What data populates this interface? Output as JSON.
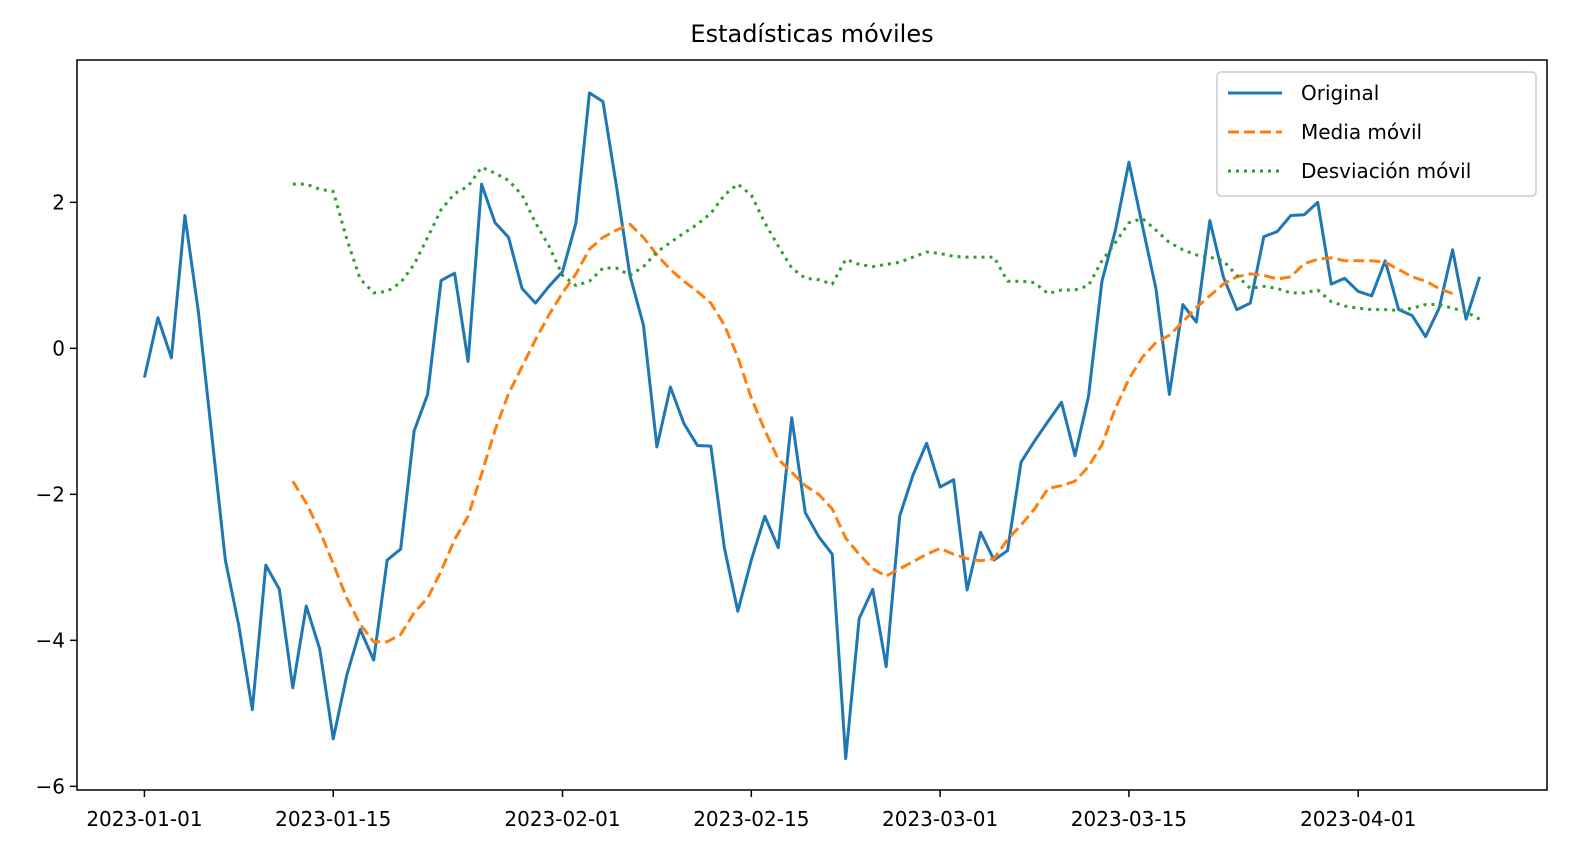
{
  "chart_data": {
    "type": "line",
    "title": "Estadísticas móviles",
    "xlabel": "",
    "ylabel": "",
    "start_date": "2023-01-01",
    "x_ticks": [
      "2023-01-01",
      "2023-01-15",
      "2023-02-01",
      "2023-02-15",
      "2023-03-01",
      "2023-03-15",
      "2023-04-01"
    ],
    "y_ticks": [
      -6,
      -4,
      -2,
      0,
      2
    ],
    "xlim": [
      "2022-12-27",
      "2023-04-15"
    ],
    "ylim": [
      -6.05,
      3.95
    ],
    "grid": false,
    "legend_position": "top-right",
    "series": [
      {
        "name": "Original",
        "color": "#1f77b4",
        "dash": "solid",
        "values": [
          -0.4,
          0.42,
          -0.13,
          1.82,
          0.5,
          -1.2,
          -2.9,
          -3.8,
          -4.95,
          -2.97,
          -3.3,
          -4.65,
          -3.53,
          -4.12,
          -5.35,
          -4.48,
          -3.85,
          -4.27,
          -2.9,
          -2.75,
          -1.13,
          -0.63,
          0.93,
          1.03,
          -0.18,
          2.25,
          1.72,
          1.52,
          0.82,
          0.62,
          0.85,
          1.05,
          1.72,
          3.5,
          3.38,
          2.22,
          1.0,
          0.32,
          -1.35,
          -0.53,
          -1.03,
          -1.33,
          -1.34,
          -2.73,
          -3.6,
          -2.9,
          -2.3,
          -2.73,
          -0.95,
          -2.25,
          -2.58,
          -2.82,
          -5.62,
          -3.7,
          -3.3,
          -4.36,
          -2.3,
          -1.73,
          -1.3,
          -1.9,
          -1.8,
          -3.31,
          -2.52,
          -2.9,
          -2.77,
          -1.56,
          -1.27,
          -1.0,
          -0.74,
          -1.47,
          -0.66,
          0.92,
          1.62,
          2.55,
          1.68,
          0.82,
          -0.63,
          0.6,
          0.36,
          1.75,
          0.98,
          0.53,
          0.62,
          1.53,
          1.6,
          1.82,
          1.83,
          2.0,
          0.88,
          0.96,
          0.78,
          0.72,
          1.2,
          0.53,
          0.45,
          0.16,
          0.55,
          1.35,
          0.4,
          0.98
        ]
      },
      {
        "name": "Media móvil",
        "color": "#ff7f0e",
        "dash": "dashed",
        "start_index": 11,
        "values": [
          -1.82,
          -2.12,
          -2.5,
          -2.95,
          -3.42,
          -3.78,
          -4.02,
          -4.02,
          -3.92,
          -3.62,
          -3.42,
          -3.05,
          -2.62,
          -2.3,
          -1.72,
          -1.12,
          -0.62,
          -0.25,
          0.12,
          0.46,
          0.76,
          1.02,
          1.36,
          1.52,
          1.62,
          1.7,
          1.52,
          1.28,
          1.08,
          0.92,
          0.78,
          0.62,
          0.32,
          -0.12,
          -0.68,
          -1.12,
          -1.52,
          -1.7,
          -1.88,
          -2.0,
          -2.2,
          -2.6,
          -2.82,
          -3.02,
          -3.12,
          -3.02,
          -2.92,
          -2.82,
          -2.74,
          -2.82,
          -2.88,
          -2.91,
          -2.88,
          -2.62,
          -2.42,
          -2.2,
          -1.92,
          -1.88,
          -1.82,
          -1.62,
          -1.32,
          -0.82,
          -0.42,
          -0.12,
          0.08,
          0.18,
          0.36,
          0.56,
          0.72,
          0.88,
          0.98,
          1.02,
          1.0,
          0.95,
          0.98,
          1.16,
          1.22,
          1.24,
          1.2,
          1.2,
          1.2,
          1.18,
          1.08,
          0.98,
          0.92,
          0.82,
          0.75
        ]
      },
      {
        "name": "Desviación móvil",
        "color": "#2ca02c",
        "dash": "dotted",
        "start_index": 11,
        "values": [
          2.25,
          2.25,
          2.18,
          2.15,
          1.5,
          0.95,
          0.76,
          0.78,
          0.9,
          1.15,
          1.52,
          1.9,
          2.12,
          2.22,
          2.48,
          2.4,
          2.3,
          2.1,
          1.72,
          1.4,
          1.0,
          0.86,
          0.92,
          1.1,
          1.1,
          1.0,
          1.12,
          1.32,
          1.45,
          1.58,
          1.7,
          1.85,
          2.1,
          2.25,
          2.1,
          1.72,
          1.4,
          1.1,
          0.96,
          0.94,
          0.88,
          1.22,
          1.15,
          1.12,
          1.15,
          1.18,
          1.25,
          1.32,
          1.3,
          1.26,
          1.25,
          1.25,
          1.25,
          0.92,
          0.92,
          0.9,
          0.75,
          0.8,
          0.8,
          0.86,
          1.2,
          1.45,
          1.72,
          1.78,
          1.62,
          1.45,
          1.35,
          1.28,
          1.25,
          1.2,
          1.0,
          0.82,
          0.85,
          0.82,
          0.76,
          0.76,
          0.8,
          0.64,
          0.58,
          0.55,
          0.53,
          0.53,
          0.52,
          0.55,
          0.6,
          0.6,
          0.55,
          0.5,
          0.4
        ]
      }
    ]
  }
}
